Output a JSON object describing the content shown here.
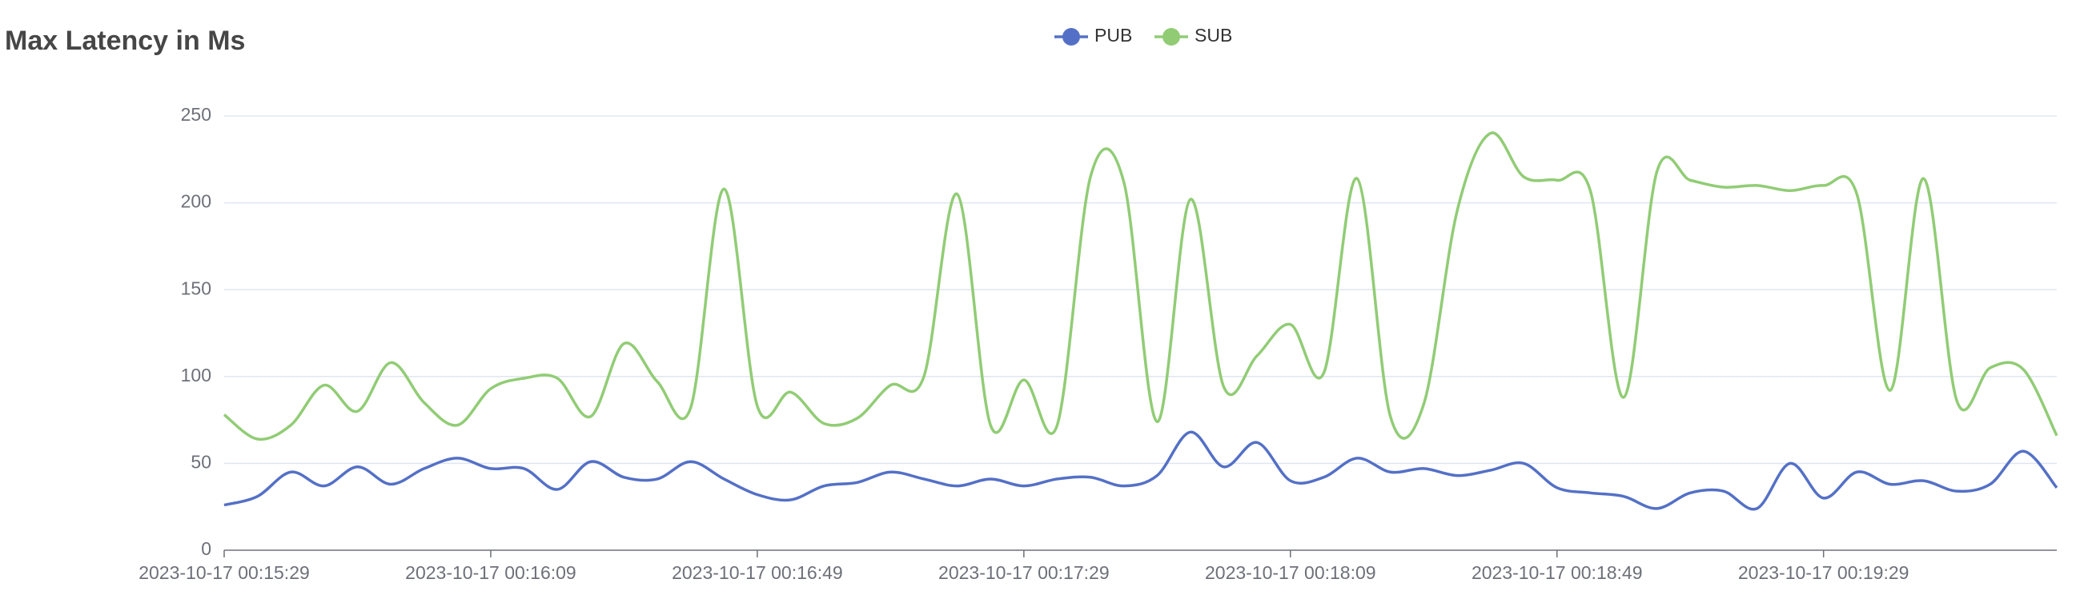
{
  "chart_data": {
    "type": "line",
    "title": "Max Latency in Ms",
    "categories": [
      "2023-10-17 00:15:29",
      null,
      null,
      null,
      null,
      null,
      null,
      null,
      "2023-10-17 00:16:09",
      null,
      null,
      null,
      null,
      null,
      null,
      null,
      "2023-10-17 00:16:49",
      null,
      null,
      null,
      null,
      null,
      null,
      null,
      "2023-10-17 00:17:29",
      null,
      null,
      null,
      null,
      null,
      null,
      null,
      "2023-10-17 00:18:09",
      null,
      null,
      null,
      null,
      null,
      null,
      null,
      "2023-10-17 00:18:49",
      null,
      null,
      null,
      null,
      null,
      null,
      null,
      "2023-10-17 00:19:29",
      null,
      null,
      null,
      null,
      null,
      null,
      null
    ],
    "series": [
      {
        "name": "PUB",
        "color": "#5470c6",
        "values": [
          26,
          31,
          45,
          37,
          48,
          38,
          47,
          53,
          47,
          47,
          35,
          51,
          42,
          41,
          51,
          41,
          32,
          29,
          37,
          39,
          45,
          41,
          37,
          41,
          37,
          41,
          42,
          37,
          43,
          68,
          48,
          62,
          40,
          42,
          53,
          45,
          47,
          43,
          46,
          50,
          36,
          33,
          31,
          24,
          33,
          34,
          24,
          50,
          30,
          45,
          38,
          40,
          34,
          38,
          57,
          36
        ]
      },
      {
        "name": "SUB",
        "color": "#91cc75",
        "values": [
          78,
          64,
          72,
          95,
          80,
          108,
          85,
          72,
          93,
          99,
          99,
          77,
          119,
          97,
          82,
          208,
          83,
          91,
          73,
          76,
          95,
          100,
          205,
          72,
          98,
          72,
          215,
          212,
          74,
          202,
          94,
          112,
          130,
          102,
          214,
          77,
          84,
          195,
          240,
          215,
          213,
          207,
          88,
          218,
          213,
          209,
          210,
          207,
          210,
          205,
          92,
          214,
          86,
          105,
          104,
          66
        ]
      }
    ],
    "ylim": [
      0,
      250
    ],
    "yticks": [
      0,
      50,
      100,
      150,
      200,
      250
    ],
    "grid": true,
    "smooth": true,
    "legend": "top"
  }
}
